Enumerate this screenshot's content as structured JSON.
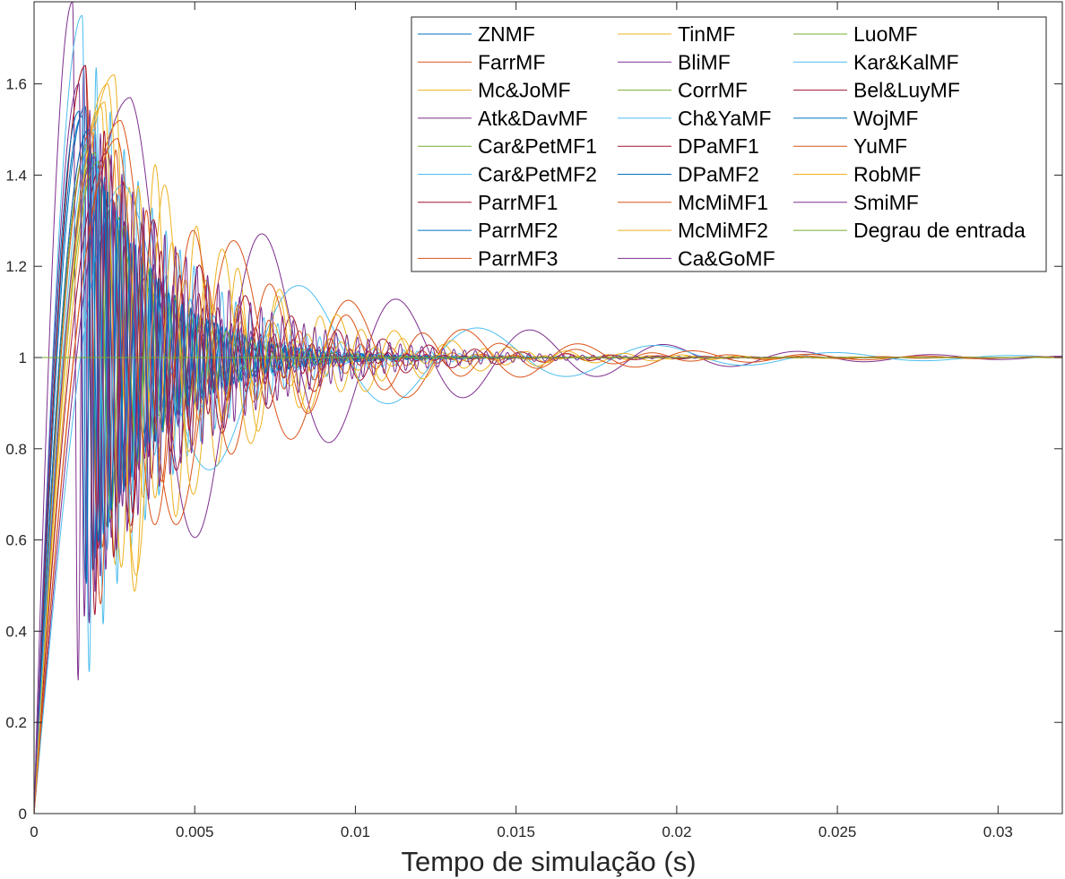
{
  "chart_data": {
    "type": "line",
    "title": "",
    "xlabel": "Tempo de simulação (s)",
    "ylabel": "",
    "xlim": [
      0,
      0.032
    ],
    "ylim": [
      0,
      1.78
    ],
    "grid": false,
    "legend_position": "top-right",
    "x_ticks": [
      0,
      0.005,
      0.01,
      0.015,
      0.02,
      0.025,
      0.03
    ],
    "x_tick_labels": [
      "0",
      "0.005",
      "0.01",
      "0.015",
      "0.02",
      "0.025",
      "0.03"
    ],
    "y_ticks": [
      0,
      0.2,
      0.4,
      0.6,
      0.8,
      1,
      1.2,
      1.4,
      1.6
    ],
    "y_tick_labels": [
      "0",
      "0.2",
      "0.4",
      "0.6",
      "0.8",
      "1",
      "1.2",
      "1.4",
      "1.6"
    ],
    "series": [
      {
        "name": "ZNMF",
        "color": "#0072BD",
        "peak_time": 0.0016,
        "peak": 1.55,
        "freq_hz": 1900,
        "decay": 650
      },
      {
        "name": "FarrMF",
        "color": "#D95319",
        "peak_time": 0.0018,
        "peak": 1.5,
        "freq_hz": 1500,
        "decay": 560
      },
      {
        "name": "Mc&JoMF",
        "color": "#EDB120",
        "peak_time": 0.0021,
        "peak": 1.55,
        "freq_hz": 1150,
        "decay": 450
      },
      {
        "name": "Atk&DavMF",
        "color": "#7E2F8E",
        "peak_time": 0.0012,
        "peak": 1.78,
        "freq_hz": 2900,
        "decay": 560
      },
      {
        "name": "Car&PetMF1",
        "color": "#77AC30",
        "peak_time": 0.0017,
        "peak": 1.47,
        "freq_hz": 1600,
        "decay": 600
      },
      {
        "name": "Car&PetMF2",
        "color": "#4DBEEE",
        "peak_time": 0.0015,
        "peak": 1.75,
        "freq_hz": 2300,
        "decay": 380
      },
      {
        "name": "ParrMF1",
        "color": "#A2142F",
        "peak_time": 0.0017,
        "peak": 1.5,
        "freq_hz": 1750,
        "decay": 620
      },
      {
        "name": "ParrMF2",
        "color": "#0072BD",
        "peak_time": 0.0015,
        "peak": 1.53,
        "freq_hz": 3800,
        "decay": 470
      },
      {
        "name": "ParrMF3",
        "color": "#D95319",
        "peak_time": 0.0016,
        "peak": 1.64,
        "freq_hz": 1050,
        "decay": 360
      },
      {
        "name": "TinMF",
        "color": "#EDB120",
        "peak_time": 0.0025,
        "peak": 1.62,
        "freq_hz": 780,
        "decay": 300
      },
      {
        "name": "BliMF",
        "color": "#7E2F8E",
        "peak_time": 0.003,
        "peak": 1.57,
        "freq_hz": 240,
        "decay": 180
      },
      {
        "name": "CorrMF",
        "color": "#77AC30",
        "peak_time": 0.0019,
        "peak": 1.45,
        "freq_hz": 1350,
        "decay": 520
      },
      {
        "name": "Ch&YaMF",
        "color": "#4DBEEE",
        "peak_time": 0.0028,
        "peak": 1.38,
        "freq_hz": 180,
        "decay": 160
      },
      {
        "name": "DPaMF1",
        "color": "#A2142F",
        "peak_time": 0.0023,
        "peak": 1.45,
        "freq_hz": 700,
        "decay": 280
      },
      {
        "name": "DPaMF2",
        "color": "#0072BD",
        "peak_time": 0.0017,
        "peak": 1.5,
        "freq_hz": 4100,
        "decay": 480
      },
      {
        "name": "McMiMF1",
        "color": "#D95319",
        "peak_time": 0.0027,
        "peak": 1.52,
        "freq_hz": 280,
        "decay": 200
      },
      {
        "name": "McMiMF2",
        "color": "#EDB120",
        "peak_time": 0.0023,
        "peak": 1.6,
        "freq_hz": 560,
        "decay": 260
      },
      {
        "name": "Ca&GoMF",
        "color": "#7E2F8E",
        "peak_time": 0.0019,
        "peak": 1.44,
        "freq_hz": 3300,
        "decay": 420
      },
      {
        "name": "LuoMF",
        "color": "#77AC30",
        "peak_time": 0.002,
        "peak": 1.43,
        "freq_hz": 1250,
        "decay": 500
      },
      {
        "name": "Kar&KalMF",
        "color": "#4DBEEE",
        "peak_time": 0.0019,
        "peak": 1.5,
        "freq_hz": 1350,
        "decay": 460
      },
      {
        "name": "Bel&LuyMF",
        "color": "#A2142F",
        "peak_time": 0.0016,
        "peak": 1.64,
        "freq_hz": 1700,
        "decay": 430
      },
      {
        "name": "WojMF",
        "color": "#0072BD",
        "peak_time": 0.0014,
        "peak": 1.54,
        "freq_hz": 2500,
        "decay": 480
      },
      {
        "name": "YuMF",
        "color": "#D95319",
        "peak_time": 0.0026,
        "peak": 1.48,
        "freq_hz": 420,
        "decay": 230
      },
      {
        "name": "RobMF",
        "color": "#EDB120",
        "peak_time": 0.0022,
        "peak": 1.56,
        "freq_hz": 950,
        "decay": 380
      },
      {
        "name": "SmiMF",
        "color": "#7E2F8E",
        "peak_time": 0.0014,
        "peak": 1.6,
        "freq_hz": 3000,
        "decay": 300
      },
      {
        "name": "Degrau de entrada",
        "color": "#77AC30",
        "step_value": 1
      }
    ]
  }
}
